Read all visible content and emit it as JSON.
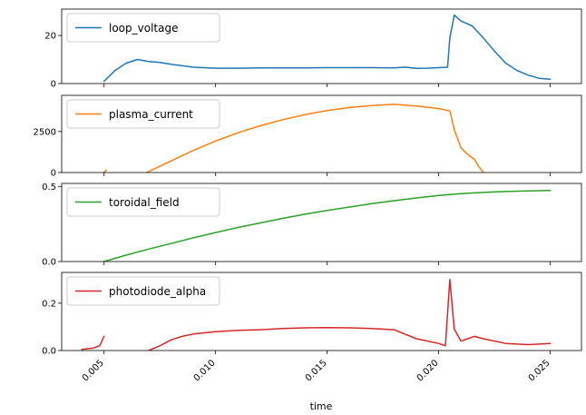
{
  "chart_data": [
    {
      "type": "line",
      "x": [
        0.005,
        0.0055,
        0.006,
        0.0065,
        0.007,
        0.0075,
        0.008,
        0.009,
        0.01,
        0.011,
        0.012,
        0.013,
        0.014,
        0.015,
        0.016,
        0.017,
        0.018,
        0.0185,
        0.019,
        0.0195,
        0.02,
        0.0204,
        0.0205,
        0.0207,
        0.021,
        0.0215,
        0.022,
        0.0225,
        0.023,
        0.0235,
        0.024,
        0.0245,
        0.025
      ],
      "series": [
        {
          "name": "loop_voltage",
          "values": [
            1.0,
            5.5,
            8.5,
            10.0,
            9.2,
            8.8,
            8.0,
            6.8,
            6.4,
            6.4,
            6.5,
            6.5,
            6.5,
            6.6,
            6.6,
            6.6,
            6.5,
            6.8,
            6.3,
            6.4,
            6.6,
            6.8,
            19.0,
            28.5,
            26.0,
            24.0,
            19.0,
            13.5,
            8.5,
            5.5,
            3.5,
            2.2,
            1.8
          ]
        }
      ],
      "ylim": [
        0,
        31
      ],
      "yticks": [
        {
          "value": 0,
          "label": "0"
        },
        {
          "value": 20,
          "label": "20"
        }
      ],
      "color": "#1f77b4",
      "legend": "top-left"
    },
    {
      "type": "line",
      "segments": [
        {
          "x": [
            0.005,
            0.0051
          ],
          "y": [
            0,
            150
          ]
        },
        {
          "x": [
            0.0069,
            0.008,
            0.009,
            0.01,
            0.011,
            0.012,
            0.013,
            0.014,
            0.015,
            0.016,
            0.017,
            0.018,
            0.019,
            0.02,
            0.0205,
            0.0207,
            0.021,
            0.0213,
            0.0216,
            0.0218,
            0.022
          ],
          "y": [
            0,
            700,
            1350,
            1920,
            2420,
            2850,
            3220,
            3520,
            3770,
            3960,
            4080,
            4150,
            4050,
            3900,
            3750,
            2600,
            1500,
            1100,
            800,
            350,
            0
          ]
        }
      ],
      "series": [
        {
          "name": "plasma_current"
        }
      ],
      "ylim": [
        0,
        4700
      ],
      "yticks": [
        {
          "value": 0,
          "label": "0"
        },
        {
          "value": 2500,
          "label": "2500"
        }
      ],
      "color": "#ff7f0e",
      "legend": "top-left"
    },
    {
      "type": "line",
      "x": [
        0.005,
        0.006,
        0.007,
        0.008,
        0.009,
        0.01,
        0.011,
        0.012,
        0.013,
        0.014,
        0.015,
        0.016,
        0.017,
        0.018,
        0.019,
        0.02,
        0.021,
        0.022,
        0.023,
        0.024,
        0.025
      ],
      "series": [
        {
          "name": "toroidal_field",
          "values": [
            0.0,
            0.043,
            0.083,
            0.12,
            0.158,
            0.193,
            0.227,
            0.257,
            0.287,
            0.315,
            0.34,
            0.363,
            0.385,
            0.405,
            0.423,
            0.44,
            0.452,
            0.46,
            0.466,
            0.47,
            0.473
          ]
        }
      ],
      "ylim": [
        0,
        0.52
      ],
      "yticks": [
        {
          "value": 0,
          "label": "0.0"
        },
        {
          "value": 0.5,
          "label": "0.5"
        }
      ],
      "color": "#2ca02c",
      "legend": "top-left"
    },
    {
      "type": "line",
      "segments": [
        {
          "x": [
            0.004,
            0.0045,
            0.0048,
            0.005
          ],
          "y": [
            0.005,
            0.01,
            0.02,
            0.06
          ]
        },
        {
          "x": [
            0.007,
            0.0075,
            0.008,
            0.0085,
            0.009,
            0.01,
            0.011,
            0.012,
            0.013,
            0.014,
            0.015,
            0.016,
            0.017,
            0.018,
            0.019,
            0.02,
            0.0203,
            0.0205,
            0.0207,
            0.021,
            0.0213,
            0.0216,
            0.022,
            0.023,
            0.024,
            0.025
          ],
          "y": [
            0.0,
            0.02,
            0.045,
            0.06,
            0.07,
            0.08,
            0.085,
            0.088,
            0.093,
            0.096,
            0.097,
            0.096,
            0.093,
            0.088,
            0.05,
            0.03,
            0.02,
            0.3,
            0.09,
            0.04,
            0.05,
            0.06,
            0.05,
            0.03,
            0.025,
            0.03
          ]
        }
      ],
      "series": [
        {
          "name": "photodiode_alpha"
        }
      ],
      "ylim": [
        0,
        0.33
      ],
      "yticks": [
        {
          "value": 0,
          "label": "0.0"
        },
        {
          "value": 0.2,
          "label": "0.2"
        }
      ],
      "color": "#d62728",
      "legend": "top-left"
    }
  ],
  "xaxis": {
    "xlim": [
      0.0031,
      0.0264
    ],
    "ticks": [
      {
        "value": 0.005,
        "label": "0.005"
      },
      {
        "value": 0.01,
        "label": "0.010"
      },
      {
        "value": 0.015,
        "label": "0.015"
      },
      {
        "value": 0.02,
        "label": "0.020"
      },
      {
        "value": 0.025,
        "label": "0.025"
      }
    ],
    "label": "time"
  }
}
